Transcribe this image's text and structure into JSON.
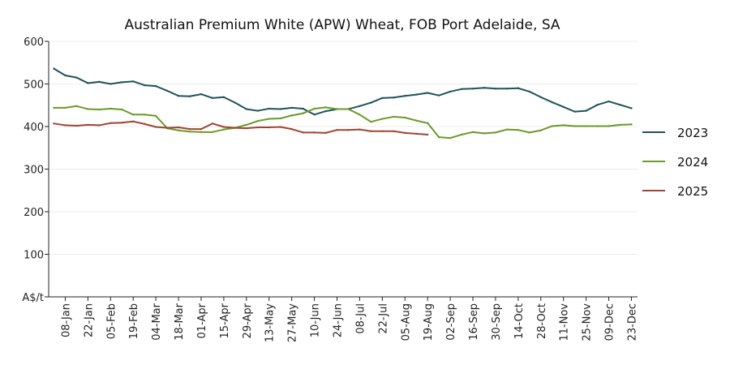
{
  "chart_data": {
    "type": "line",
    "title": "Australian Premium White (APW) Wheat, FOB Port Adelaide, SA",
    "ylabel": "A$/t",
    "xlabel": "",
    "ylim": [
      0,
      600
    ],
    "yticks": [
      0,
      100,
      200,
      300,
      400,
      500,
      600
    ],
    "y_tick_labels": [
      "A$/t",
      "100",
      "200",
      "300",
      "400",
      "500",
      "600"
    ],
    "x": [
      "01-Jan",
      "08-Jan",
      "15-Jan",
      "22-Jan",
      "29-Jan",
      "05-Feb",
      "12-Feb",
      "19-Feb",
      "26-Feb",
      "04-Mar",
      "11-Mar",
      "18-Mar",
      "25-Mar",
      "01-Apr",
      "08-Apr",
      "15-Apr",
      "22-Apr",
      "29-Apr",
      "06-May",
      "13-May",
      "20-May",
      "27-May",
      "03-Jun",
      "10-Jun",
      "17-Jun",
      "24-Jun",
      "01-Jul",
      "08-Jul",
      "15-Jul",
      "22-Jul",
      "29-Jul",
      "05-Aug",
      "12-Aug",
      "19-Aug",
      "26-Aug",
      "02-Sep",
      "09-Sep",
      "16-Sep",
      "23-Sep",
      "30-Sep",
      "07-Oct",
      "14-Oct",
      "21-Oct",
      "28-Oct",
      "04-Nov",
      "11-Nov",
      "18-Nov",
      "25-Nov",
      "02-Dec",
      "09-Dec",
      "16-Dec",
      "23-Dec",
      "30-Dec"
    ],
    "x_tick_labels": [
      "08-Jan",
      "22-Jan",
      "05-Feb",
      "19-Feb",
      "04-Mar",
      "18-Mar",
      "01-Apr",
      "15-Apr",
      "29-Apr",
      "13-May",
      "27-May",
      "10-Jun",
      "24-Jun",
      "08-Jul",
      "22-Jul",
      "05-Aug",
      "19-Aug",
      "02-Sep",
      "16-Sep",
      "30-Sep",
      "14-Oct",
      "28-Oct",
      "11-Nov",
      "25-Nov",
      "09-Dec",
      "23-Dec"
    ],
    "grid": true,
    "legend_position": "right",
    "series": [
      {
        "name": "2023",
        "color": "#1f5459",
        "values": [
          536,
          520,
          515,
          502,
          505,
          500,
          504,
          506,
          497,
          495,
          484,
          472,
          471,
          476,
          467,
          469,
          456,
          441,
          437,
          442,
          441,
          444,
          442,
          428,
          436,
          441,
          441,
          448,
          456,
          467,
          468,
          472,
          475,
          479,
          473,
          482,
          488,
          489,
          491,
          489,
          489,
          490,
          482,
          469,
          457,
          446,
          435,
          437,
          451,
          459,
          451,
          443,
          null
        ]
      },
      {
        "name": "2024",
        "color": "#6b9a2a",
        "values": [
          444,
          444,
          448,
          441,
          440,
          442,
          440,
          428,
          428,
          425,
          396,
          391,
          388,
          387,
          387,
          393,
          397,
          404,
          413,
          418,
          419,
          426,
          431,
          442,
          445,
          441,
          441,
          428,
          411,
          418,
          423,
          421,
          414,
          408,
          375,
          373,
          381,
          387,
          384,
          386,
          393,
          392,
          386,
          391,
          401,
          403,
          401,
          401,
          401,
          401,
          404,
          405,
          null
        ]
      },
      {
        "name": "2025",
        "color": "#a04535",
        "values": [
          407,
          403,
          402,
          404,
          403,
          408,
          409,
          412,
          406,
          399,
          397,
          398,
          394,
          394,
          407,
          399,
          397,
          396,
          398,
          398,
          399,
          394,
          386,
          386,
          385,
          392,
          392,
          393,
          389,
          389,
          389,
          385,
          383,
          381,
          null,
          null,
          null,
          null,
          null,
          null,
          null,
          null,
          null,
          null,
          null,
          null,
          null,
          null,
          null,
          null,
          null,
          null,
          null
        ]
      }
    ]
  }
}
